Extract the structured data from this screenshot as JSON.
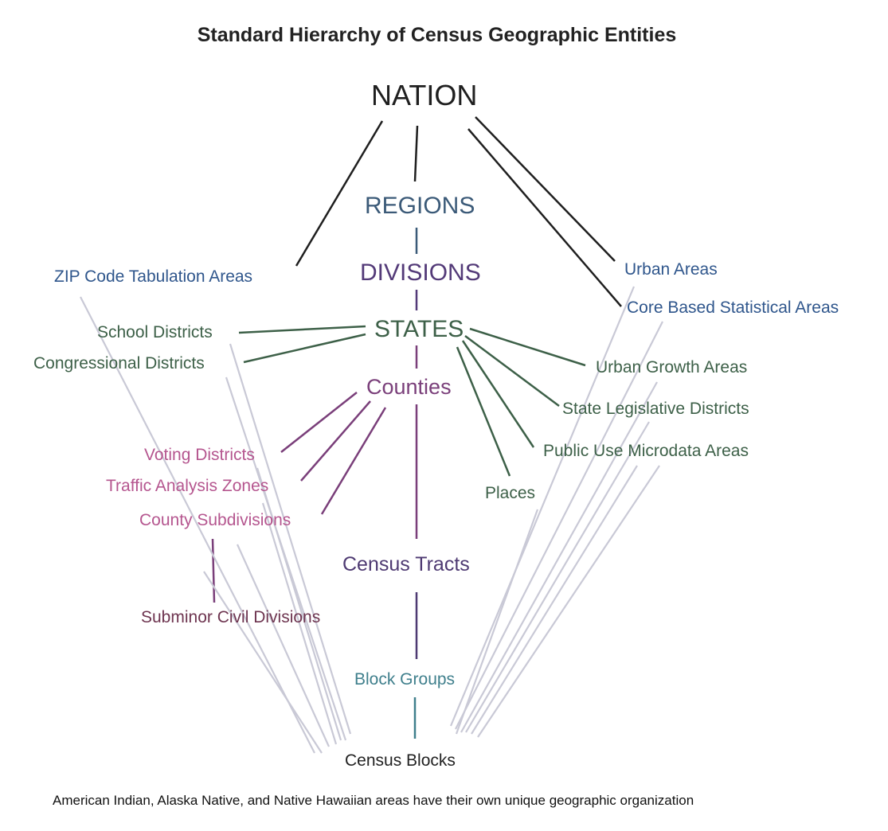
{
  "title": "Standard Hierarchy of Census Geographic Entities",
  "footnote": "American Indian, Alaska Native, and Native Hawaiian areas have their own unique geographic organization",
  "colors": {
    "nation": "#1f1f1f",
    "regions": "#3b5a78",
    "divisions": "#533a78",
    "states": "#3d6048",
    "counties": "#7a3f7a",
    "county_children": "#b5568f",
    "subminor": "#6e3550",
    "tracts": "#4e3a72",
    "block_groups": "#3f7f8c",
    "blocks": "#222222",
    "urban": "#2f568c",
    "to_blocks": "#c9c9d6"
  },
  "nodes": {
    "nation": "NATION",
    "regions": "REGIONS",
    "divisions": "DIVISIONS",
    "states": "STATES",
    "counties": "Counties",
    "census_tracts": "Census Tracts",
    "block_groups": "Block Groups",
    "census_blocks": "Census Blocks",
    "zcta": "ZIP Code Tabulation Areas",
    "urban_areas": "Urban Areas",
    "cbsa": "Core Based Statistical Areas",
    "school_districts": "School Districts",
    "congressional_districts": "Congressional Districts",
    "urban_growth_areas": "Urban Growth Areas",
    "state_legislative_districts": "State Legislative Districts",
    "puma": "Public Use Microdata Areas",
    "places": "Places",
    "voting_districts": "Voting Districts",
    "traffic_analysis_zones": "Traffic Analysis Zones",
    "county_subdivisions": "County Subdivisions",
    "subminor_civil_divisions": "Subminor Civil Divisions"
  }
}
